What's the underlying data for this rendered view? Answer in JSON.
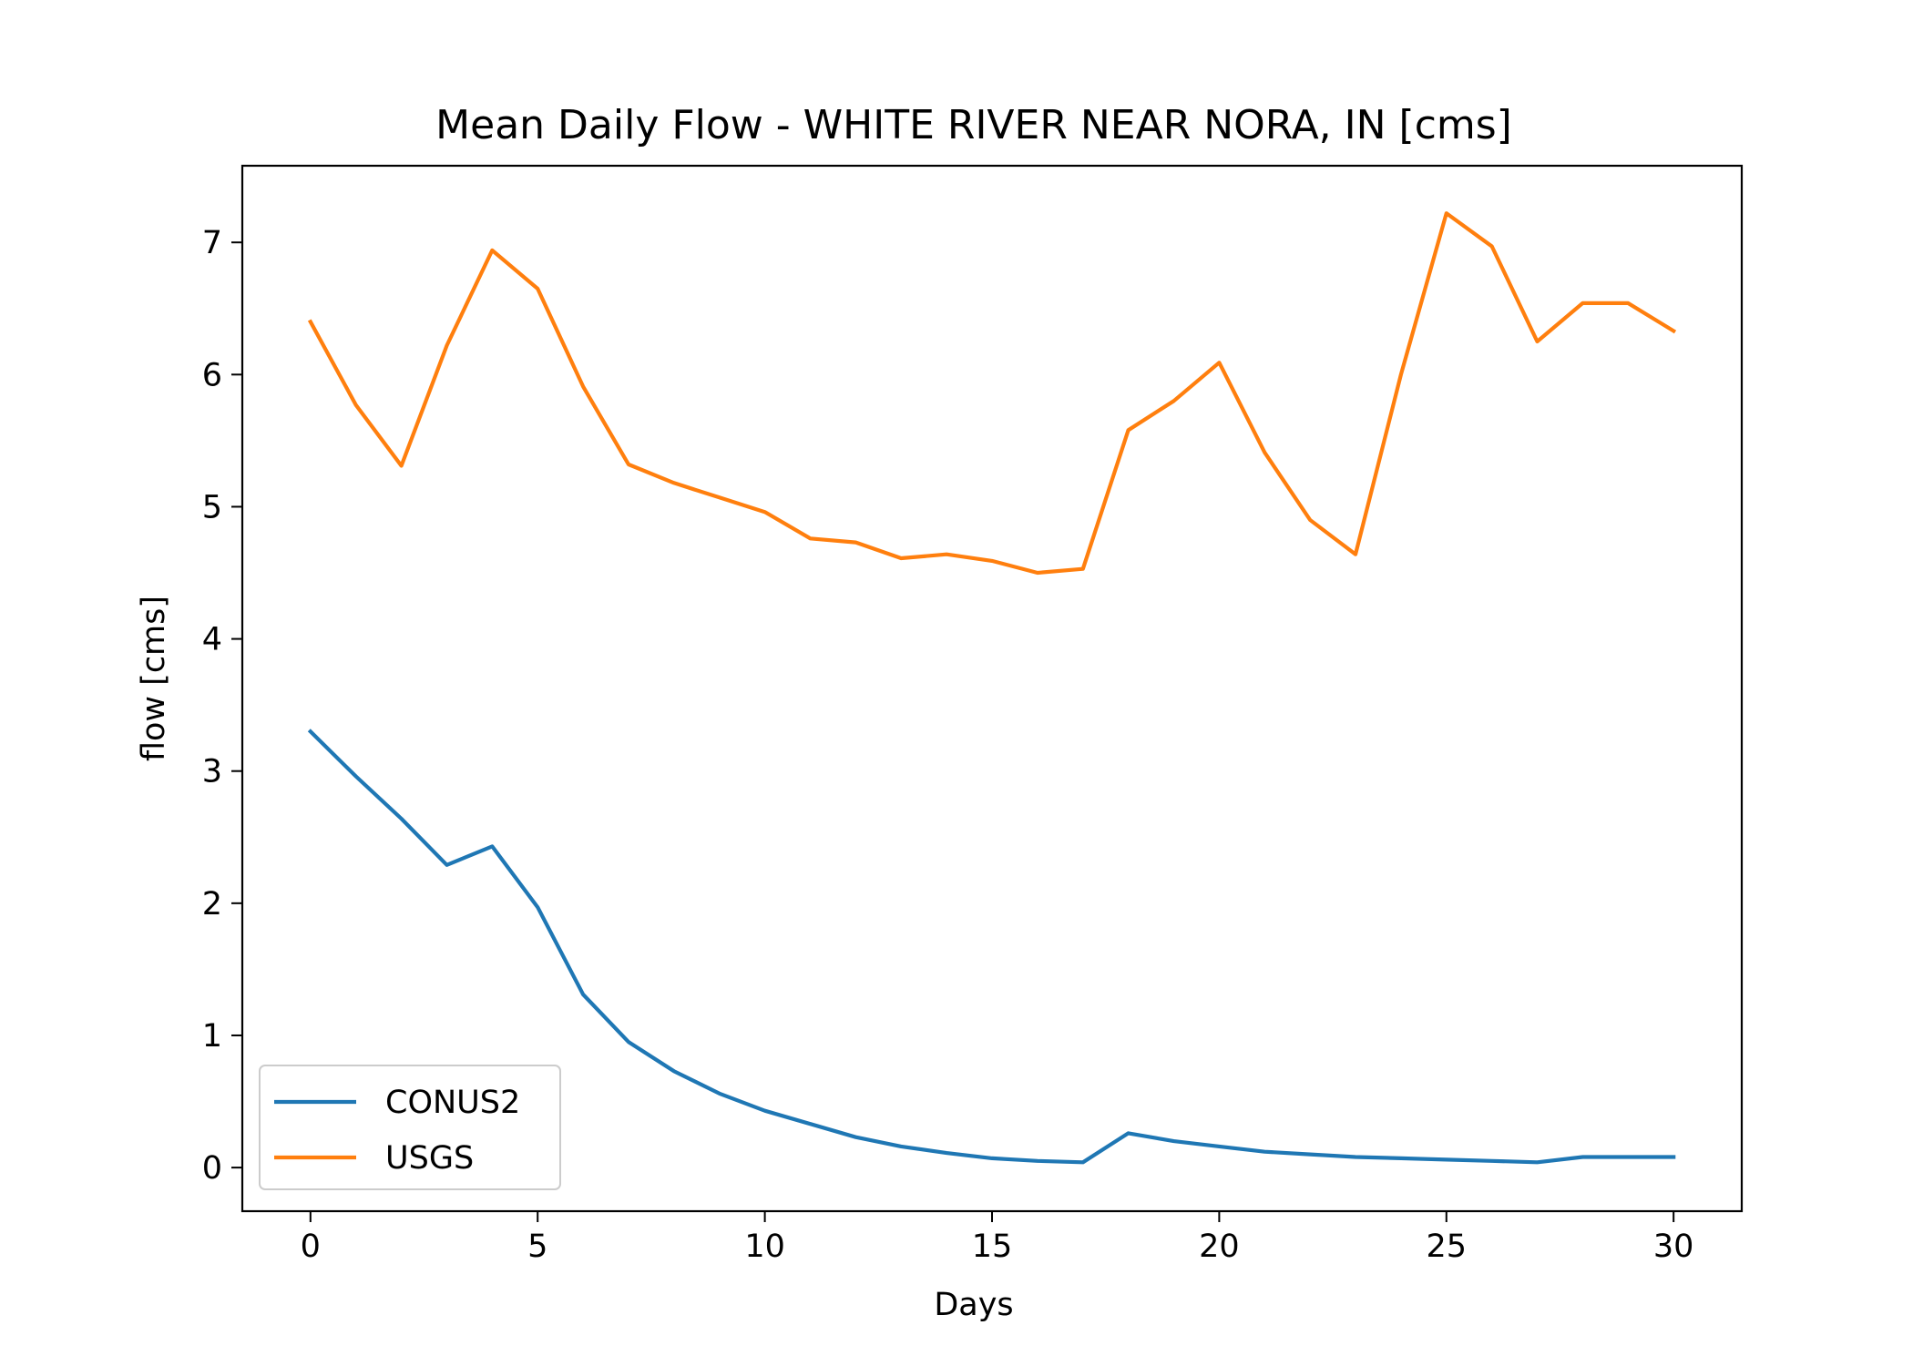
{
  "chart_data": {
    "type": "line",
    "title": "Mean Daily Flow - WHITE RIVER NEAR NORA, IN [cms]",
    "xlabel": "Days",
    "ylabel": "flow [cms]",
    "xlim": [
      -1.5,
      31.5
    ],
    "ylim": [
      -0.33,
      7.58
    ],
    "xticks": [
      0,
      5,
      10,
      15,
      20,
      25,
      30
    ],
    "yticks": [
      0,
      1,
      2,
      3,
      4,
      5,
      6,
      7
    ],
    "x": [
      0,
      1,
      2,
      3,
      4,
      5,
      6,
      7,
      8,
      9,
      10,
      11,
      12,
      13,
      14,
      15,
      16,
      17,
      18,
      19,
      20,
      21,
      22,
      23,
      24,
      25,
      26,
      27,
      28,
      29,
      30
    ],
    "series": [
      {
        "name": "CONUS2",
        "color": "#1f77b4",
        "values": [
          3.3,
          2.96,
          2.64,
          2.29,
          2.43,
          1.97,
          1.31,
          0.95,
          0.73,
          0.56,
          0.43,
          0.33,
          0.23,
          0.16,
          0.11,
          0.07,
          0.05,
          0.04,
          0.26,
          0.2,
          0.16,
          0.12,
          0.1,
          0.08,
          0.07,
          0.06,
          0.05,
          0.04,
          0.08,
          0.08,
          0.08
        ]
      },
      {
        "name": "USGS",
        "color": "#ff7f0e",
        "values": [
          6.4,
          5.77,
          5.31,
          6.22,
          6.94,
          6.65,
          5.91,
          5.32,
          5.18,
          5.07,
          4.96,
          4.76,
          4.73,
          4.61,
          4.64,
          4.59,
          4.5,
          4.53,
          5.58,
          5.8,
          6.09,
          5.41,
          4.9,
          4.64,
          6.0,
          7.22,
          6.97,
          6.25,
          6.54,
          6.54,
          6.33
        ]
      }
    ],
    "legend": "lower-left",
    "grid": false
  }
}
